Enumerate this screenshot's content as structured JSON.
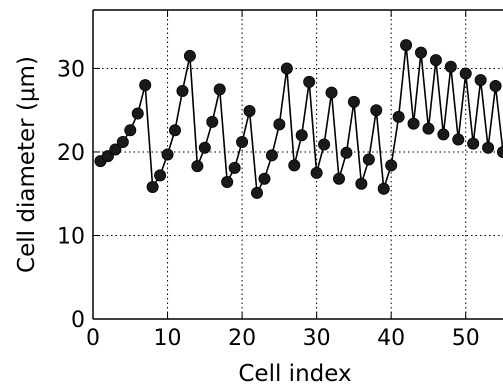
{
  "chart_data": {
    "type": "line",
    "xlabel": "Cell index",
    "ylabel": "Cell diameter (μm)",
    "xlim": [
      0,
      55
    ],
    "ylim": [
      0,
      37
    ],
    "xticks": [
      0,
      10,
      20,
      30,
      40,
      50
    ],
    "yticks": [
      0,
      10,
      20,
      30
    ],
    "grid": true,
    "marker": "circle",
    "line_color": "#000000",
    "marker_color": "#1a1a1a",
    "x": [
      1,
      2,
      3,
      4,
      5,
      6,
      7,
      8,
      9,
      10,
      11,
      12,
      13,
      14,
      15,
      16,
      17,
      18,
      19,
      20,
      21,
      22,
      23,
      24,
      25,
      26,
      27,
      28,
      29,
      30,
      31,
      32,
      33,
      34,
      35,
      36,
      37,
      38,
      39,
      40,
      41,
      42,
      43,
      44,
      45,
      46,
      47,
      48,
      49,
      50,
      51,
      52,
      53,
      54,
      55
    ],
    "y": [
      18.9,
      19.5,
      20.3,
      21.2,
      22.6,
      24.6,
      28.0,
      15.8,
      17.2,
      19.7,
      22.6,
      27.3,
      31.5,
      18.3,
      20.5,
      23.6,
      27.5,
      16.4,
      18.1,
      21.2,
      24.9,
      15.1,
      16.8,
      19.6,
      23.3,
      30.0,
      18.4,
      22.0,
      28.4,
      17.5,
      20.9,
      27.1,
      16.8,
      19.9,
      26.0,
      16.2,
      19.1,
      25.0,
      15.6,
      18.4,
      24.2,
      32.8,
      23.4,
      31.9,
      22.8,
      31.0,
      22.1,
      30.2,
      21.5,
      29.4,
      21.0,
      28.6,
      20.5,
      27.9,
      20.0
    ]
  }
}
